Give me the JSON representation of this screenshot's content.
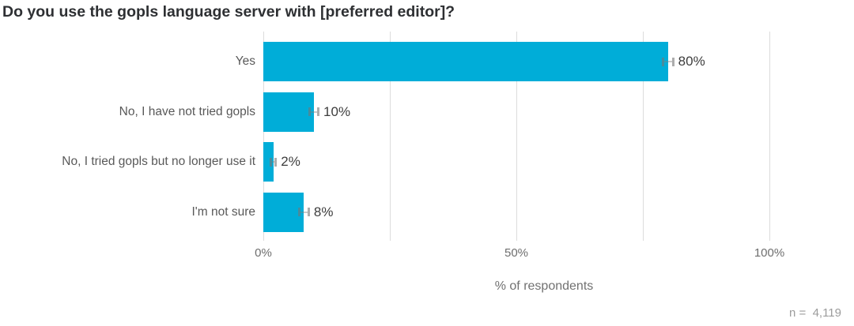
{
  "title": "Do you use the gopls language server with [preferred editor]?",
  "chart_data": {
    "type": "bar",
    "orientation": "horizontal",
    "title": "Do you use the gopls language server with [preferred editor]?",
    "categories": [
      "Yes",
      "No, I have not tried gopls",
      "No, I tried gopls but no longer use it",
      "I'm not sure"
    ],
    "values": [
      80,
      10,
      2,
      8
    ],
    "value_labels": [
      "80%",
      "10%",
      "2%",
      "8%"
    ],
    "error_margins_pct": [
      1.2,
      1.1,
      0.7,
      1.2
    ],
    "xlabel": "% of respondents",
    "xlim": [
      0,
      100
    ],
    "x_tick_labels": [
      {
        "pct": 0,
        "label": "0%"
      },
      {
        "pct": 50,
        "label": "50%"
      },
      {
        "pct": 100,
        "label": "100%"
      }
    ],
    "gridline_pcts": [
      0,
      25,
      50,
      75,
      100
    ],
    "grid": true,
    "legend_position": "none",
    "n_label": "n =  4,119",
    "colors": {
      "bar": "#00ADD8",
      "gridline": "#dcdcdc",
      "title_text": "#2e3033",
      "category_label": "#595959",
      "value_label": "#3d3d3d",
      "tick_label": "#6e6e6e",
      "axis_title": "#717171",
      "n_label": "#9c9c9c",
      "error_bar": "#7d7d7d"
    }
  }
}
